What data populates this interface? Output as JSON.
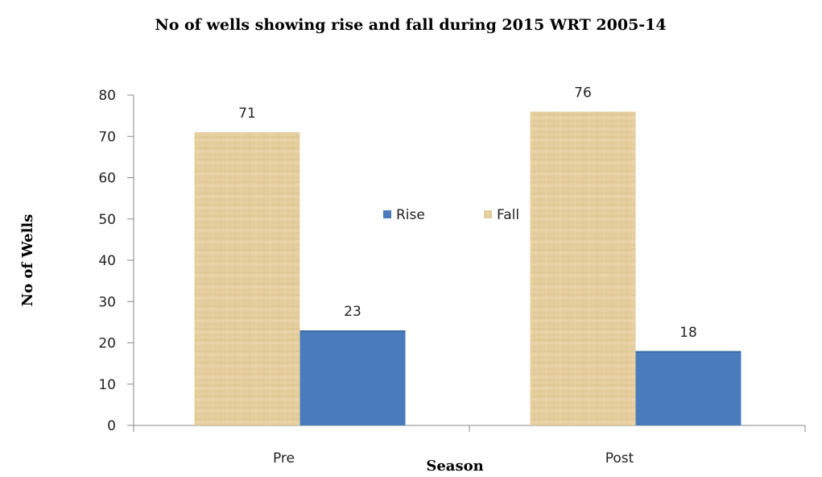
{
  "chart_data": {
    "type": "bar",
    "title": "No of wells showing rise and fall during 2015 WRT 2005-14",
    "xlabel": "Season",
    "ylabel": "No of Wells",
    "categories": [
      "Pre",
      "Post"
    ],
    "series": [
      {
        "name": "Fall",
        "values": [
          71,
          76
        ],
        "color": "#e3cc9c"
      },
      {
        "name": "Rise",
        "values": [
          23,
          18
        ],
        "color": "#4a7cbc"
      }
    ],
    "legend_order": [
      "Rise",
      "Fall"
    ],
    "legend_position": "center",
    "ylim": [
      0,
      80
    ],
    "yticks": [
      "0",
      "10",
      "20",
      "30",
      "40",
      "50",
      "60",
      "70",
      "80"
    ],
    "grid": false,
    "data_labels": true
  }
}
